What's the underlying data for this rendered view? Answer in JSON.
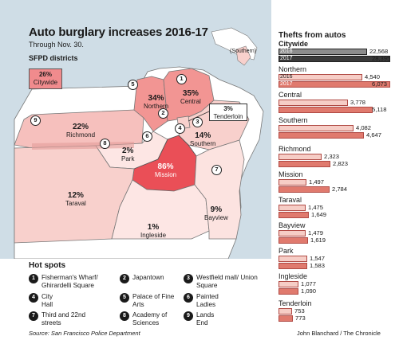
{
  "header": {
    "title": "Auto burglary increases 2016-17",
    "subtitle": "Through Nov. 30.",
    "districts_label": "SFPD districts"
  },
  "citywide_box": {
    "pct": "26%",
    "label": "Citywide"
  },
  "districts": [
    {
      "key": "northern",
      "pct": "34%",
      "name": "Northern"
    },
    {
      "key": "central",
      "pct": "35%",
      "name": "Central"
    },
    {
      "key": "richmond",
      "pct": "22%",
      "name": "Richmond"
    },
    {
      "key": "park",
      "pct": "2%",
      "name": "Park"
    },
    {
      "key": "mission",
      "pct": "86%",
      "name": "Mission"
    },
    {
      "key": "southern",
      "pct": "14%",
      "name": "Southern"
    },
    {
      "key": "taraval",
      "pct": "12%",
      "name": "Taraval"
    },
    {
      "key": "ingleside",
      "pct": "1%",
      "name": "Ingleside"
    },
    {
      "key": "bayview",
      "pct": "9%",
      "name": "Bayview"
    }
  ],
  "tenderloin_callout": {
    "pct": "3%",
    "name": "Tenderloin"
  },
  "southern_tag": "(Southern)",
  "hotspots": {
    "title": "Hot spots",
    "items": [
      {
        "num": "1",
        "label": "Fisherman's Wharf/ Ghirardelli Square"
      },
      {
        "num": "2",
        "label": "Japantown"
      },
      {
        "num": "3",
        "label": "Westfield mall/ Union Square"
      },
      {
        "num": "4",
        "label": "City Hall"
      },
      {
        "num": "5",
        "label": "Palace of Fine Arts"
      },
      {
        "num": "6",
        "label": "Painted Ladies"
      },
      {
        "num": "7",
        "label": "Third and 22nd streets"
      },
      {
        "num": "8",
        "label": "Academy of Sciences"
      },
      {
        "num": "9",
        "label": "Lands End"
      }
    ]
  },
  "chart": {
    "title": "Thefts from autos",
    "year_labels": [
      "2016",
      "2017"
    ],
    "colors": {
      "citywide_2016": "#8c8c8c",
      "citywide_2017": "#3a3a3a",
      "district_2016": "#f6cdc6",
      "district_2017": "#e07a6e"
    },
    "max_value": 28395,
    "rows": [
      {
        "name": "Citywide",
        "v2016": 22568,
        "v2017": 28395,
        "l2016": "22,568",
        "l2017": "28,395"
      },
      {
        "name": "Northern",
        "v2016": 4540,
        "v2017": 6073,
        "l2016": "4,540",
        "l2017": "6,073"
      },
      {
        "name": "Central",
        "v2016": 3778,
        "v2017": 5118,
        "l2016": "3,778",
        "l2017": "5,118"
      },
      {
        "name": "Southern",
        "v2016": 4082,
        "v2017": 4647,
        "l2016": "4,082",
        "l2017": "4,647"
      },
      {
        "name": "Richmond",
        "v2016": 2323,
        "v2017": 2823,
        "l2016": "2,323",
        "l2017": "2,823"
      },
      {
        "name": "Mission",
        "v2016": 1497,
        "v2017": 2784,
        "l2016": "1,497",
        "l2017": "2,784"
      },
      {
        "name": "Taraval",
        "v2016": 1475,
        "v2017": 1649,
        "l2016": "1,475",
        "l2017": "1,649"
      },
      {
        "name": "Bayview",
        "v2016": 1479,
        "v2017": 1619,
        "l2016": "1,479",
        "l2017": "1,619"
      },
      {
        "name": "Park",
        "v2016": 1547,
        "v2017": 1583,
        "l2016": "1,547",
        "l2017": "1,583"
      },
      {
        "name": "Ingleside",
        "v2016": 1077,
        "v2017": 1090,
        "l2016": "1,077",
        "l2017": "1,090"
      },
      {
        "name": "Tenderloin",
        "v2016": 753,
        "v2017": 773,
        "l2016": "753",
        "l2017": "773"
      }
    ]
  },
  "footer": {
    "source": "Source: San Francisco Police Department",
    "credit": "John Blanchard / The Chronicle"
  }
}
